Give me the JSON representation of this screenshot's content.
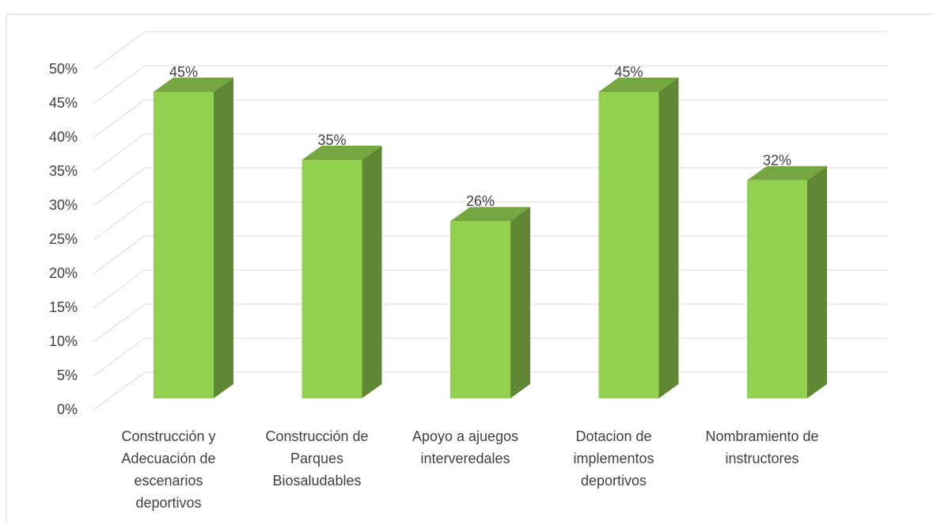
{
  "chart_data": {
    "type": "bar3d",
    "categories": [
      "Construcción y Adecuación de escenarios deportivos",
      "Construcción de Parques Biosaludables",
      "Apoyo a ajuegos interveredales",
      "Dotacion de implementos deportivos",
      "Nombramiento de instructores"
    ],
    "values": [
      45,
      35,
      26,
      45,
      32
    ],
    "value_labels": [
      "45%",
      "35%",
      "26%",
      "45%",
      "32%"
    ],
    "color": "#92d050",
    "ylim": [
      0,
      50
    ],
    "yticks": [
      {
        "value": 0,
        "label": "0%"
      },
      {
        "value": 5,
        "label": "5%"
      },
      {
        "value": 10,
        "label": "10%"
      },
      {
        "value": 15,
        "label": "15%"
      },
      {
        "value": 20,
        "label": "20%"
      },
      {
        "value": 25,
        "label": "25%"
      },
      {
        "value": 30,
        "label": "30%"
      },
      {
        "value": 35,
        "label": "35%"
      },
      {
        "value": 40,
        "label": "40%"
      },
      {
        "value": 45,
        "label": "45%"
      },
      {
        "value": 50,
        "label": "50%"
      }
    ],
    "grid": true
  }
}
